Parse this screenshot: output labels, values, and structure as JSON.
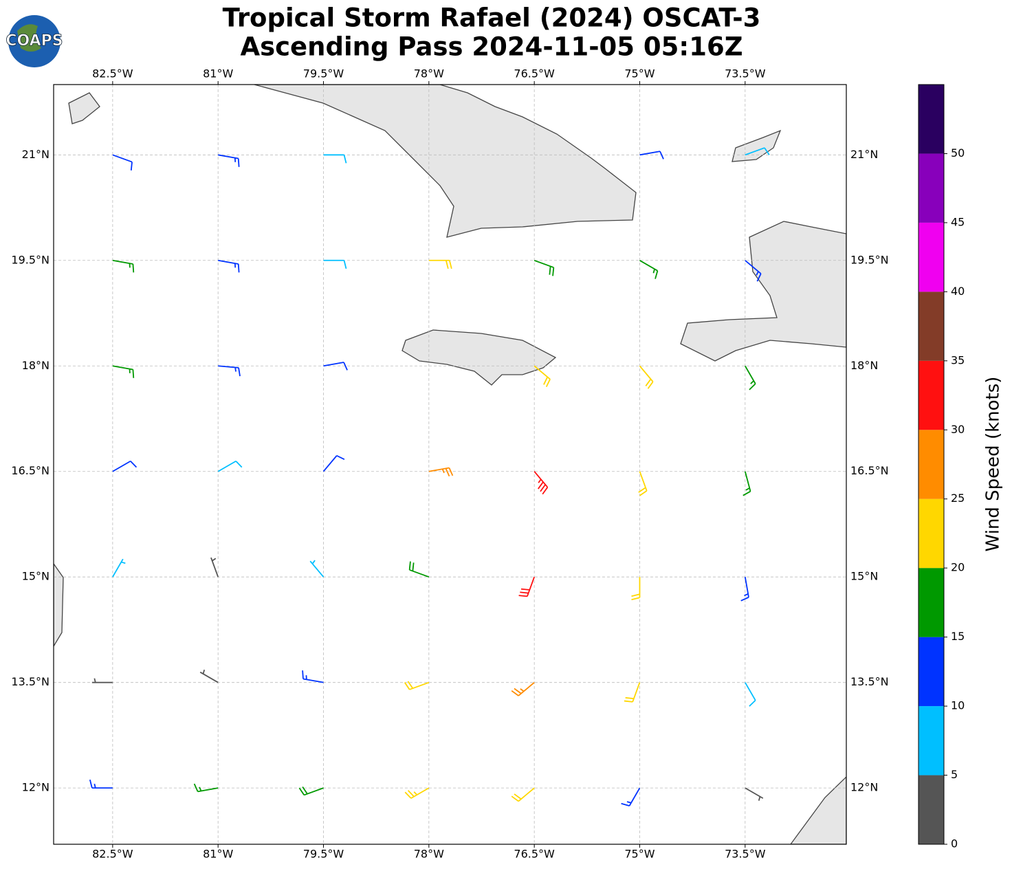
{
  "chart_data": {
    "type": "barbs",
    "logo": "COAPS",
    "title": "Tropical Storm Rafael (2024) OSCAT-3",
    "subtitle": "Ascending Pass 2024-11-05 05:16Z",
    "xlim": [
      -83.34,
      -72.06
    ],
    "ylim": [
      11.2,
      22.0
    ],
    "xticks": [
      {
        "value": -82.5,
        "label": "82.5°W"
      },
      {
        "value": -81,
        "label": "81°W"
      },
      {
        "value": -79.5,
        "label": "79.5°W"
      },
      {
        "value": -78,
        "label": "78°W"
      },
      {
        "value": -76.5,
        "label": "76.5°W"
      },
      {
        "value": -75,
        "label": "75°W"
      },
      {
        "value": -73.5,
        "label": "73.5°W"
      }
    ],
    "yticks": [
      {
        "value": 12,
        "label": "12°N"
      },
      {
        "value": 13.5,
        "label": "13.5°N"
      },
      {
        "value": 15,
        "label": "15°N"
      },
      {
        "value": 16.5,
        "label": "16.5°N"
      },
      {
        "value": 18,
        "label": "18°N"
      },
      {
        "value": 19.5,
        "label": "19.5°N"
      },
      {
        "value": 21,
        "label": "21°N"
      }
    ],
    "grid": true,
    "colorbar": {
      "label": "Wind Speed (knots)",
      "bins": [
        0,
        5,
        10,
        15,
        20,
        25,
        30,
        35,
        40,
        45,
        50,
        55
      ],
      "colors": [
        "#555555",
        "#00bfff",
        "#0033ff",
        "#009900",
        "#ffd700",
        "#ff8c00",
        "#ff1010",
        "#833c28",
        "#f000f0",
        "#8800bb",
        "#2a0060"
      ],
      "ticks": [
        0,
        5,
        10,
        15,
        20,
        25,
        30,
        35,
        40,
        45,
        50
      ]
    },
    "barbs": {
      "lon": [
        -82.5,
        -81,
        -79.5,
        -75,
        -73.5,
        -82.5,
        -81,
        -79.5,
        -78,
        -76.5,
        -75,
        -73.5,
        -82.5,
        -81,
        -79.5,
        -76.5,
        -75,
        -73.5,
        -82.5,
        -81,
        -79.5,
        -78,
        -76.5,
        -75,
        -73.5,
        -82.5,
        -81,
        -79.5,
        -78,
        -76.5,
        -75,
        -73.5,
        -82.5,
        -81,
        -79.5,
        -78,
        -76.5,
        -75,
        -73.5,
        -82.5,
        -81,
        -79.5,
        -78,
        -76.5,
        -75,
        -73.5
      ],
      "lat": [
        21,
        21,
        21,
        21,
        21,
        19.5,
        19.5,
        19.5,
        19.5,
        19.5,
        19.5,
        19.5,
        18,
        18,
        18,
        18,
        18,
        18,
        16.5,
        16.5,
        16.5,
        16.5,
        16.5,
        16.5,
        16.5,
        15,
        15,
        15,
        15,
        15,
        15,
        15,
        13.5,
        13.5,
        13.5,
        13.5,
        13.5,
        13.5,
        13.5,
        12,
        12,
        12,
        12,
        12,
        12,
        12
      ],
      "speed": [
        12,
        14,
        8,
        12,
        8,
        17,
        13,
        9,
        21,
        18,
        17,
        13,
        17,
        14,
        11,
        22,
        20,
        16,
        12,
        9,
        12,
        26,
        33,
        22,
        16,
        7,
        4,
        7,
        18,
        31,
        20,
        13,
        3,
        3,
        13,
        22,
        27,
        22,
        9,
        14,
        16,
        18,
        23,
        20,
        13,
        4
      ],
      "direction": [
        110,
        100,
        90,
        80,
        70,
        100,
        100,
        90,
        90,
        110,
        120,
        130,
        100,
        95,
        80,
        130,
        140,
        150,
        60,
        60,
        40,
        80,
        140,
        160,
        165,
        30,
        340,
        320,
        290,
        200,
        180,
        170,
        270,
        300,
        280,
        250,
        230,
        200,
        150,
        270,
        260,
        250,
        240,
        230,
        210,
        120
      ]
    }
  }
}
